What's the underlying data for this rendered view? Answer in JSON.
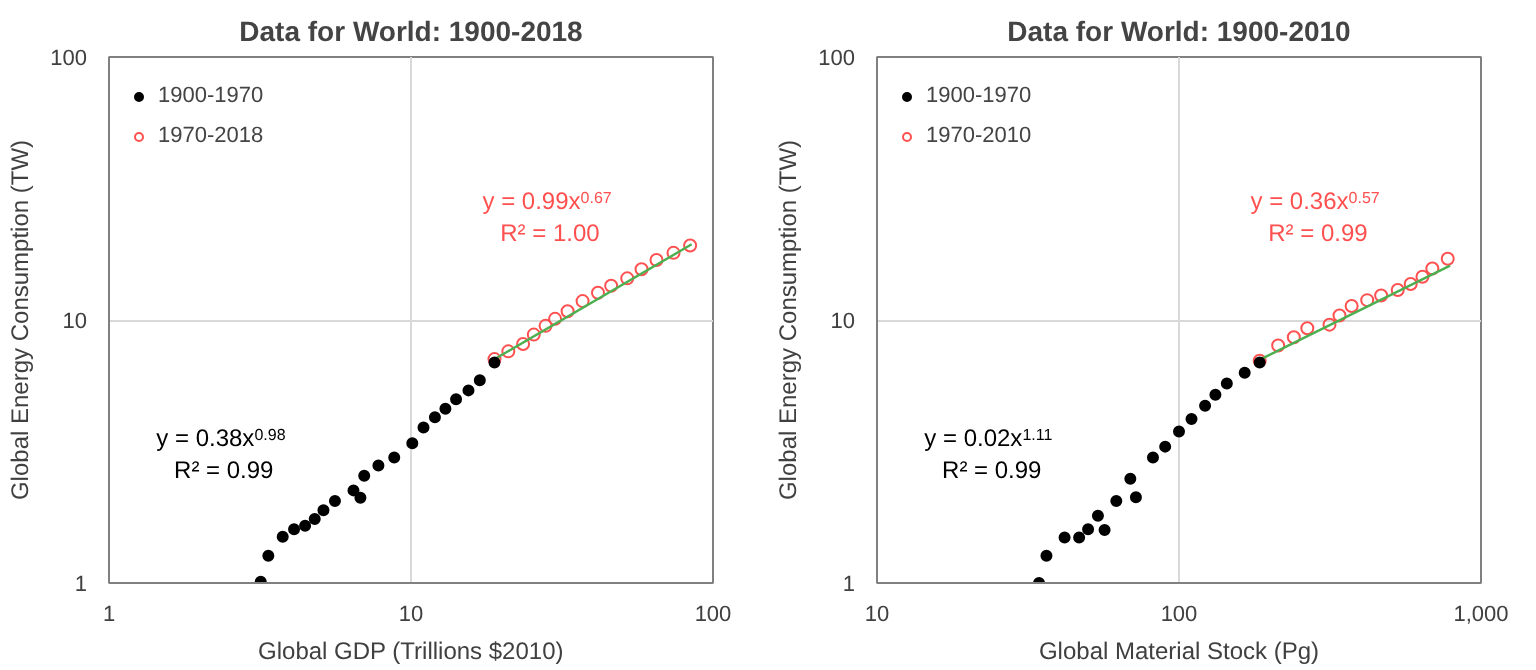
{
  "chart_data": [
    {
      "type": "scatter",
      "title": "Data for World: 1900-2018",
      "xlabel": "Global GDP (Trillions $2010)",
      "ylabel": "Global Energy Consumption (TW)",
      "log": "xy",
      "grid": true,
      "legend": "top left",
      "marker": "circle",
      "xlim": [
        1,
        100
      ],
      "ylim": [
        1,
        100
      ],
      "xticks": [
        1,
        10,
        100
      ],
      "yticks": [
        1,
        10,
        100
      ],
      "series": [
        {
          "name": "1900-1970",
          "color": "#000000",
          "x": [
            3.18,
            3.37,
            3.76,
            4.1,
            4.46,
            4.8,
            5.13,
            5.6,
            6.45,
            6.8,
            7.0,
            7.8,
            8.8,
            10.1,
            11.0,
            12.0,
            13.0,
            14.1,
            15.5,
            16.9,
            18.9
          ],
          "values": [
            1.01,
            1.27,
            1.5,
            1.6,
            1.65,
            1.75,
            1.89,
            2.05,
            2.25,
            2.11,
            2.56,
            2.8,
            3.0,
            3.4,
            3.9,
            4.27,
            4.6,
            5.0,
            5.4,
            5.9,
            6.9
          ]
        },
        {
          "name": "1970-2018",
          "color": "#ff5050",
          "x": [
            18.9,
            21,
            23.5,
            25.5,
            27.9,
            30,
            33,
            37,
            41.6,
            46,
            52,
            58,
            65,
            74,
            84
          ],
          "values": [
            7.1,
            7.6,
            8.1,
            8.8,
            9.5,
            10.1,
            10.8,
            11.8,
            12.7,
            13.5,
            14.4,
            15.6,
            16.9,
            18.0,
            19.2
          ]
        },
        {
          "type": "line",
          "marker": "none",
          "color": "#4caf50",
          "x": [
            19,
            85
          ],
          "values": [
            7.12,
            19.4
          ]
        }
      ],
      "annotations": [
        "y = 0.38x$^{0.98}$\nR² = 0.99",
        "y = 0.99x$^{0.67}$\nR² = 1.00"
      ]
    },
    {
      "type": "scatter",
      "title": "Data for World: 1900-2010",
      "xlabel": "Global Material Stock (Pg)",
      "ylabel": "Global Energy Consumption (TW)",
      "log": "xy",
      "grid": true,
      "legend": "top left",
      "marker": "circle",
      "xlim": [
        10,
        1000
      ],
      "ylim": [
        1,
        100
      ],
      "xticks": [
        10,
        100,
        {
          "value": 1000,
          "label": "1,000"
        }
      ],
      "yticks": [
        1,
        10,
        100
      ],
      "series": [
        {
          "name": "1900-1970",
          "color": "#000000",
          "x": [
            34.4,
            36.4,
            41.8,
            46.7,
            50,
            53.9,
            56.7,
            62,
            69,
            72,
            82,
            90,
            100,
            110,
            122,
            132,
            144,
            165,
            185
          ],
          "values": [
            1.0,
            1.27,
            1.49,
            1.49,
            1.6,
            1.8,
            1.59,
            2.05,
            2.49,
            2.12,
            3.0,
            3.3,
            3.77,
            4.2,
            4.72,
            5.2,
            5.73,
            6.3,
            6.9
          ]
        },
        {
          "name": "1970-2010",
          "color": "#ff5050",
          "x": [
            185,
            213,
            240,
            266,
            315,
            340,
            373,
            420,
            467,
            530,
            585,
            640,
            690,
            776
          ],
          "values": [
            7.0,
            8.0,
            8.6,
            9.3,
            9.6,
            10.4,
            11.3,
            11.9,
            12.4,
            13.0,
            13.7,
            14.6,
            15.7,
            17.1
          ]
        },
        {
          "type": "line",
          "marker": "none",
          "color": "#4caf50",
          "x": [
            180,
            790
          ],
          "values": [
            6.95,
            16.1
          ]
        }
      ],
      "annotations": [
        "y = 0.02x$^{1.11}$\nR² = 0.99",
        "y = 0.36x$^{0.57}$\nR² = 0.99"
      ]
    }
  ]
}
